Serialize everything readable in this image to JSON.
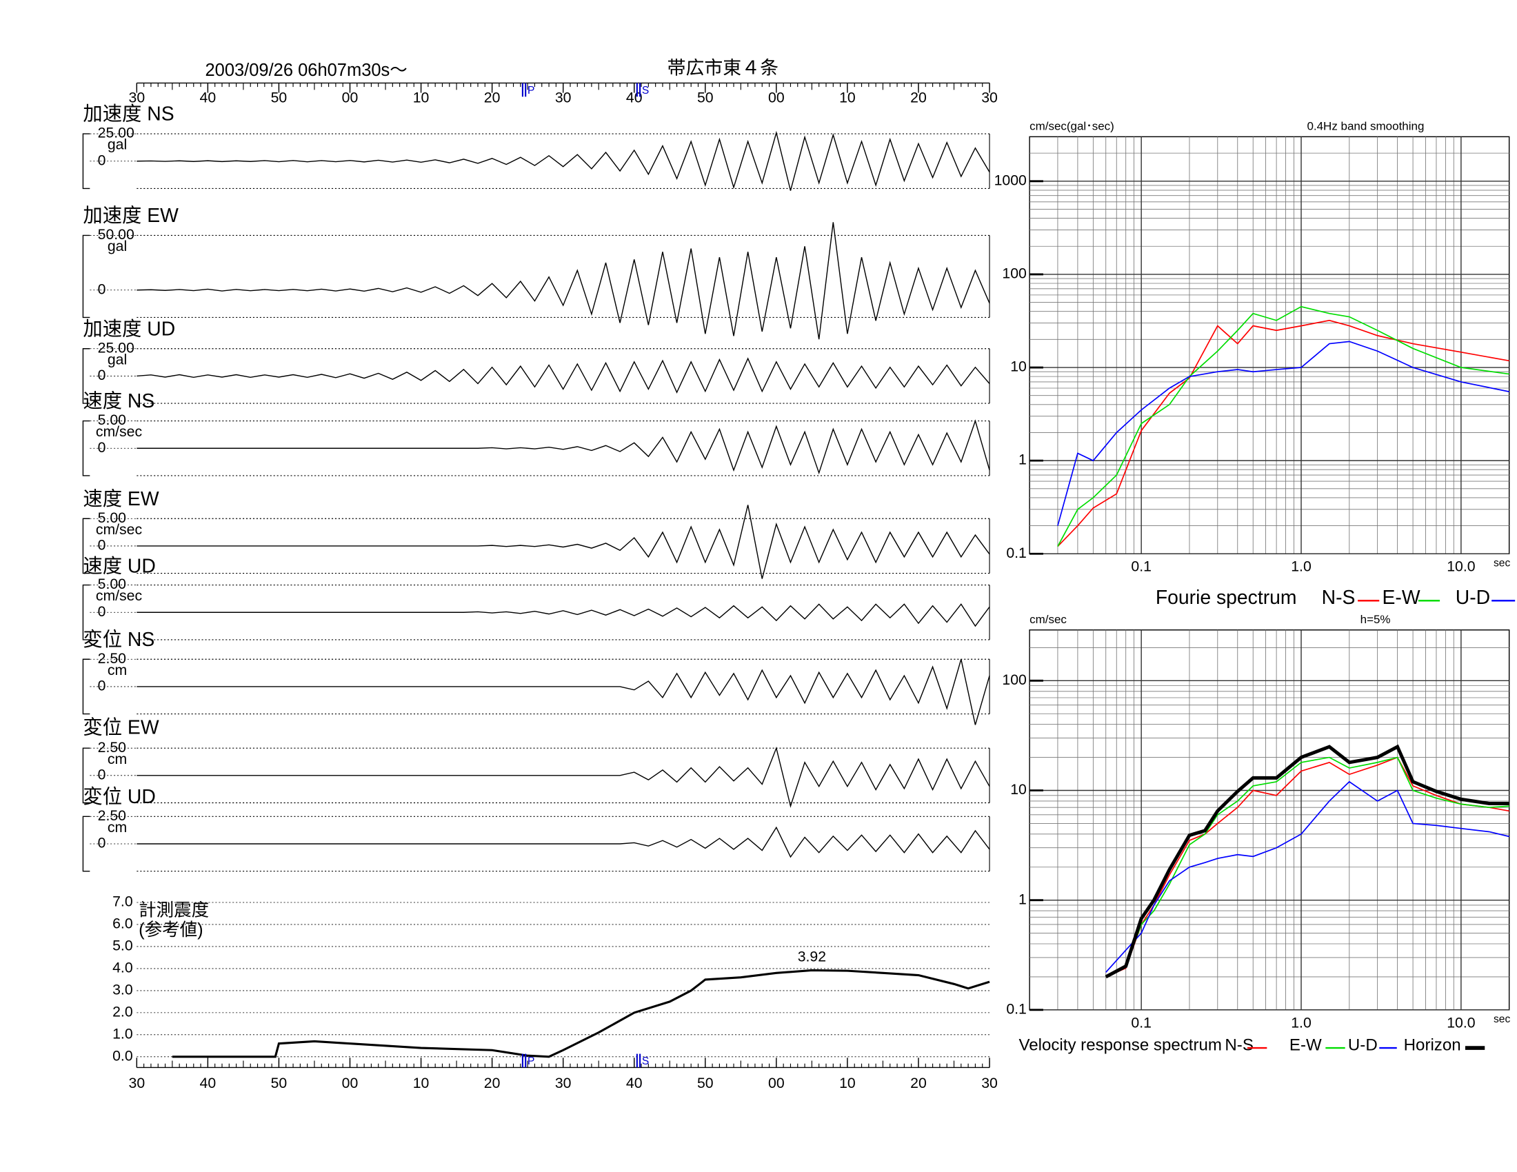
{
  "chart_data": [
    {
      "type": "waveforms",
      "title": "2003/09/26  06h07m30s～",
      "subtitle": "帯広市東４条",
      "xlim": [
        0,
        120
      ],
      "xticks": [
        {
          "value": 0,
          "label": "30"
        },
        {
          "value": 10,
          "label": "40"
        },
        {
          "value": 20,
          "label": "50"
        },
        {
          "value": 30,
          "label": "00"
        },
        {
          "value": 40,
          "label": "10"
        },
        {
          "value": 50,
          "label": "20"
        },
        {
          "value": 60,
          "label": "30"
        },
        {
          "value": 70,
          "label": "40"
        },
        {
          "value": 80,
          "label": "50"
        },
        {
          "value": 90,
          "label": "00"
        },
        {
          "value": 100,
          "label": "10"
        },
        {
          "value": 110,
          "label": "20"
        },
        {
          "value": 120,
          "label": "30"
        }
      ],
      "phases": [
        {
          "label": "P",
          "x": 54.3
        },
        {
          "label": "S",
          "x": 70.4
        }
      ],
      "x": [
        0,
        2,
        4,
        6,
        8,
        10,
        12,
        14,
        16,
        18,
        20,
        22,
        24,
        26,
        28,
        30,
        32,
        34,
        36,
        38,
        40,
        42,
        44,
        46,
        48,
        50,
        52,
        54,
        56,
        58,
        60,
        62,
        64,
        66,
        68,
        70,
        72,
        74,
        76,
        78,
        80,
        82,
        84,
        86,
        88,
        90,
        92,
        94,
        96,
        98,
        100,
        102,
        104,
        106,
        108,
        110,
        112,
        114,
        116,
        118,
        120
      ],
      "color": "#000000",
      "traces": [
        {
          "name": "加速度 NS",
          "unit": "gal",
          "ylim": [
            -25,
            25
          ],
          "yticks": [
            {
              "value": 25,
              "label": "25.00"
            },
            0
          ],
          "values": [
            0,
            0.2,
            -0.2,
            0.3,
            -0.3,
            0.4,
            -0.4,
            0.3,
            -0.3,
            0.5,
            -0.5,
            0.6,
            -0.6,
            0.5,
            -0.5,
            0.6,
            -0.7,
            0.8,
            -0.8,
            1,
            -1,
            1.2,
            -1.5,
            1.8,
            -2,
            2.5,
            -3,
            3.5,
            -4,
            5,
            -5,
            6,
            -7,
            8,
            -9,
            10,
            -12,
            14,
            -16,
            18,
            -22,
            20,
            -24,
            18,
            -20,
            26,
            -27,
            22,
            -20,
            24,
            -20,
            18,
            -22,
            20,
            -18,
            16,
            -15,
            17,
            -14,
            12,
            -10
          ]
        },
        {
          "name": "加速度 EW",
          "unit": "gal",
          "ylim": [
            -25,
            50
          ],
          "yticks": [
            {
              "value": 50,
              "label": "50.00"
            },
            0
          ],
          "values": [
            0,
            0.3,
            -0.3,
            0.5,
            -0.5,
            0.8,
            -0.8,
            0.6,
            -0.6,
            0.5,
            -0.5,
            0.6,
            -0.6,
            0.8,
            -0.8,
            1,
            -1,
            1.5,
            -1.5,
            2,
            -2,
            3,
            -3,
            4,
            -5,
            6,
            -7,
            8,
            -10,
            12,
            -14,
            18,
            -22,
            25,
            -30,
            28,
            -32,
            35,
            -30,
            38,
            -40,
            30,
            -42,
            35,
            -38,
            30,
            -35,
            40,
            -45,
            62,
            -40,
            30,
            -28,
            25,
            -22,
            20,
            -18,
            20,
            -16,
            18,
            -12
          ]
        },
        {
          "name": "加速度 UD",
          "unit": "gal",
          "ylim": [
            -25,
            25
          ],
          "yticks": [
            {
              "value": 25,
              "label": "25.00"
            },
            0
          ],
          "values": [
            0,
            1,
            -1,
            1.2,
            -1.2,
            1,
            -1,
            1.2,
            -1.2,
            1,
            -1,
            1.2,
            -1.2,
            1.5,
            -1.5,
            2,
            -2,
            2.5,
            -3,
            3.5,
            -4,
            5,
            -5,
            6,
            -7,
            8,
            -8,
            9,
            -10,
            10,
            -12,
            11,
            -13,
            12,
            -14,
            13,
            -12,
            14,
            -15,
            13,
            -14,
            15,
            -13,
            16,
            -14,
            13,
            -12,
            11,
            -10,
            12,
            -10,
            9,
            -11,
            8,
            -10,
            9,
            -8,
            10,
            -9,
            8,
            -7
          ]
        },
        {
          "name": "速度 NS",
          "unit": "cm/sec",
          "ylim": [
            -5,
            5
          ],
          "yticks": [
            {
              "value": 5,
              "label": "5.00"
            },
            0
          ],
          "values": [
            0,
            0,
            0,
            0,
            0,
            0,
            0,
            0,
            0,
            0,
            0,
            0,
            0,
            0,
            0,
            0,
            0,
            0,
            0,
            0,
            0,
            0,
            0,
            0,
            0,
            0.1,
            -0.1,
            0.1,
            -0.1,
            0.2,
            -0.2,
            0.3,
            -0.4,
            0.5,
            -0.6,
            1,
            -1.5,
            2,
            -2.5,
            3,
            -2,
            3.5,
            -4,
            3,
            -3.5,
            4,
            -3,
            3,
            -4.5,
            3.5,
            -3,
            3.5,
            -2.5,
            3,
            -3,
            2.5,
            -3,
            2.8,
            -2.5,
            5,
            -4
          ]
        },
        {
          "name": "速度 EW",
          "unit": "cm/sec",
          "ylim": [
            -5,
            5
          ],
          "yticks": [
            {
              "value": 5,
              "label": "5.00"
            },
            0
          ],
          "values": [
            0,
            0,
            0,
            0,
            0,
            0,
            0,
            0,
            0,
            0,
            0,
            0,
            0,
            0,
            0,
            0,
            0,
            0,
            0,
            0,
            0,
            0,
            0,
            0,
            0,
            0.1,
            -0.1,
            0.1,
            -0.1,
            0.2,
            -0.2,
            0.3,
            -0.4,
            0.5,
            -0.8,
            1.5,
            -2,
            2.5,
            -3,
            3.5,
            -3,
            3,
            -3.5,
            7.5,
            -6,
            4,
            -3,
            3.5,
            -3,
            3,
            -2.5,
            2.5,
            -3,
            2.5,
            -2,
            2.5,
            -2,
            2.5,
            -2,
            2,
            -1.5
          ]
        },
        {
          "name": "速度 UD",
          "unit": "cm/sec",
          "ylim": [
            -5,
            5
          ],
          "yticks": [
            {
              "value": 5,
              "label": "5.00"
            },
            0
          ],
          "values": [
            0,
            0,
            0,
            0,
            0,
            0,
            0,
            0,
            0,
            0,
            0,
            0,
            0,
            0,
            0,
            0,
            0,
            0,
            0,
            0,
            0,
            0,
            0,
            0,
            0.1,
            -0.1,
            0.1,
            -0.2,
            0.2,
            -0.3,
            0.3,
            -0.4,
            0.4,
            -0.5,
            0.5,
            -0.6,
            0.6,
            -0.7,
            0.8,
            -0.8,
            0.9,
            -1,
            1.2,
            -1,
            1,
            -1.5,
            1.2,
            -1.2,
            1.5,
            -1.2,
            1,
            -1.5,
            1.5,
            -1,
            1.5,
            -2,
            1.2,
            -1.8,
            1.5,
            -2.5,
            1
          ]
        },
        {
          "name": "変位 NS",
          "unit": "cm",
          "ylim": [
            -2.5,
            2.5
          ],
          "yticks": [
            {
              "value": 2.5,
              "label": "2.50"
            },
            0
          ],
          "values": [
            0,
            0,
            0,
            0,
            0,
            0,
            0,
            0,
            0,
            0,
            0,
            0,
            0,
            0,
            0,
            0,
            0,
            0,
            0,
            0,
            0,
            0,
            0,
            0,
            0,
            0,
            0,
            0,
            0,
            0,
            0,
            0,
            0,
            0,
            0,
            -0.3,
            0.5,
            -1,
            1.2,
            -1,
            1.3,
            -0.8,
            1.2,
            -1.2,
            1.5,
            -1,
            1,
            -1.5,
            1.3,
            -1,
            1.2,
            -1,
            1.5,
            -1.2,
            1,
            -1.5,
            1.8,
            -2,
            2.5,
            -3.5,
            1
          ]
        },
        {
          "name": "変位 EW",
          "unit": "cm",
          "ylim": [
            -2.5,
            2.5
          ],
          "yticks": [
            {
              "value": 2.5,
              "label": "2.50"
            },
            0
          ],
          "values": [
            0,
            0,
            0,
            0,
            0,
            0,
            0,
            0,
            0,
            0,
            0,
            0,
            0,
            0,
            0,
            0,
            0,
            0,
            0,
            0,
            0,
            0,
            0,
            0,
            0,
            0,
            0,
            0,
            0,
            0,
            0,
            0,
            0,
            0,
            0,
            0.3,
            -0.4,
            0.5,
            -0.6,
            0.7,
            -0.6,
            0.8,
            -0.5,
            0.7,
            -0.8,
            2.5,
            -2.8,
            1.2,
            -1,
            1.3,
            -1,
            1.2,
            -1.3,
            1,
            -1.2,
            1.5,
            -1.3,
            1.5,
            -1.2,
            1.3,
            -1
          ]
        },
        {
          "name": "変位 UD",
          "unit": "cm",
          "ylim": [
            -2.5,
            2.5
          ],
          "yticks": [
            {
              "value": 2.5,
              "label": "2.50"
            },
            0
          ],
          "values": [
            0,
            0,
            0,
            0,
            0,
            0,
            0,
            0,
            0,
            0,
            0,
            0,
            0,
            0,
            0,
            0,
            0,
            0,
            0,
            0,
            0,
            0,
            0,
            0,
            0,
            0,
            0,
            0,
            0,
            0,
            0,
            0,
            0,
            0,
            0,
            0.1,
            -0.2,
            0.3,
            -0.3,
            0.4,
            -0.4,
            0.5,
            -0.5,
            0.5,
            -0.6,
            1.5,
            -1.2,
            0.6,
            -0.8,
            0.7,
            -0.6,
            0.8,
            -0.7,
            0.8,
            -0.8,
            0.9,
            -0.8,
            0.7,
            -0.8,
            1.2,
            -0.5
          ]
        }
      ]
    },
    {
      "type": "line",
      "title": "計測震度",
      "subtitle": "(参考値)",
      "x": [
        5,
        19.5,
        20,
        25,
        30,
        40,
        50,
        55,
        58,
        60,
        65,
        70,
        75,
        78,
        80,
        85,
        90,
        95,
        100,
        105,
        110,
        115,
        117,
        120
      ],
      "values": [
        0,
        0,
        0.6,
        0.7,
        0.6,
        0.4,
        0.3,
        0.05,
        0,
        0.3,
        1.1,
        2.0,
        2.5,
        3.0,
        3.5,
        3.6,
        3.8,
        3.92,
        3.9,
        3.8,
        3.7,
        3.3,
        3.1,
        3.4
      ],
      "color": "#000000",
      "annotation": {
        "x": 95,
        "y": 3.92
      },
      "ylim": [
        0,
        7
      ],
      "yticks": [
        {
          "value": 0,
          "label": "0.0"
        },
        {
          "value": 1,
          "label": "1.0"
        },
        {
          "value": 2,
          "label": "2.0"
        },
        {
          "value": 3,
          "label": "3.0"
        },
        {
          "value": 4,
          "label": "4.0"
        },
        {
          "value": 5,
          "label": "5.0"
        },
        {
          "value": 6,
          "label": "6.0"
        },
        {
          "value": 7,
          "label": "7.0"
        }
      ],
      "grid": true
    },
    {
      "type": "loglog",
      "y_label": "cm/sec(gal･sec)",
      "note": "0.4Hz band smoothing",
      "x_unit": "sec",
      "legend_title": "Fourie spectrum",
      "xlim": [
        0.02,
        20
      ],
      "ylim": [
        0.1,
        3000
      ],
      "xticks": [
        0.1,
        {
          "value": 1,
          "label": "1.0"
        },
        {
          "value": 10,
          "label": "10.0"
        }
      ],
      "yticks": [
        0.1,
        1,
        10,
        100,
        1000
      ],
      "grid": true,
      "log_x": true,
      "log_y": true,
      "x": [
        0.03,
        0.04,
        0.05,
        0.07,
        0.1,
        0.15,
        0.2,
        0.3,
        0.4,
        0.5,
        0.7,
        1,
        1.5,
        2,
        3,
        5,
        10,
        20
      ],
      "series": [
        {
          "name": "N-S",
          "color": "#ff0000",
          "values": [
            0.12,
            0.2,
            0.31,
            0.44,
            2.1,
            5.3,
            7.7,
            28,
            18,
            28,
            25,
            28,
            32,
            28,
            22,
            18,
            14.6,
            11.8
          ]
        },
        {
          "name": "E-W",
          "color": "#00dd00",
          "values": [
            0.12,
            0.3,
            0.4,
            0.7,
            2.5,
            4,
            8,
            15,
            25,
            38,
            32,
            45,
            38,
            35,
            25,
            16,
            10,
            8.5
          ]
        },
        {
          "name": "U-D",
          "color": "#0000ff",
          "values": [
            0.2,
            1.2,
            1.0,
            2.0,
            3.5,
            6,
            8,
            9,
            9.5,
            9,
            9.5,
            10,
            18,
            19,
            15,
            10,
            7,
            5.5
          ]
        }
      ]
    },
    {
      "type": "loglog",
      "y_label": "cm/sec",
      "note": "h=5%",
      "x_unit": "sec",
      "legend_title": "Velocity response spectrum",
      "xlim": [
        0.02,
        20
      ],
      "ylim": [
        0.1,
        290
      ],
      "xticks": [
        0.1,
        {
          "value": 1,
          "label": "1.0"
        },
        {
          "value": 10,
          "label": "10.0"
        }
      ],
      "yticks": [
        0.1,
        1,
        10,
        100
      ],
      "grid": true,
      "log_x": true,
      "log_y": true,
      "x": [
        0.06,
        0.08,
        0.1,
        0.12,
        0.15,
        0.2,
        0.25,
        0.3,
        0.4,
        0.5,
        0.7,
        1,
        1.5,
        2,
        3,
        4,
        5,
        7,
        10,
        15,
        20
      ],
      "series": [
        {
          "name": "N-S",
          "color": "#ff0000",
          "values": [
            0.2,
            0.24,
            0.6,
            0.9,
            1.7,
            3.5,
            4,
            5,
            7,
            10,
            9,
            15,
            18,
            14,
            17,
            20,
            11,
            9,
            7.5,
            7,
            6.5
          ]
        },
        {
          "name": "E-W",
          "color": "#00dd00",
          "values": [
            0.2,
            0.25,
            0.6,
            0.8,
            1.4,
            3.2,
            4,
            6,
            8,
            11,
            12,
            18,
            20,
            16,
            18,
            20,
            10,
            8.5,
            7.5,
            7,
            7.2
          ]
        },
        {
          "name": "U-D",
          "color": "#0000ff",
          "values": [
            0.22,
            0.35,
            0.5,
            0.9,
            1.5,
            2,
            2.2,
            2.4,
            2.6,
            2.5,
            3,
            4,
            8,
            12,
            8,
            10,
            5,
            4.8,
            4.5,
            4.2,
            3.8
          ]
        },
        {
          "name": "Horizon",
          "color": "#000000",
          "values": [
            0.2,
            0.25,
            0.68,
            1.0,
            1.9,
            3.9,
            4.3,
            6.5,
            9.8,
            13,
            13,
            20,
            25,
            18,
            20,
            25,
            12,
            9.8,
            8.3,
            7.6,
            7.6
          ]
        }
      ]
    }
  ]
}
